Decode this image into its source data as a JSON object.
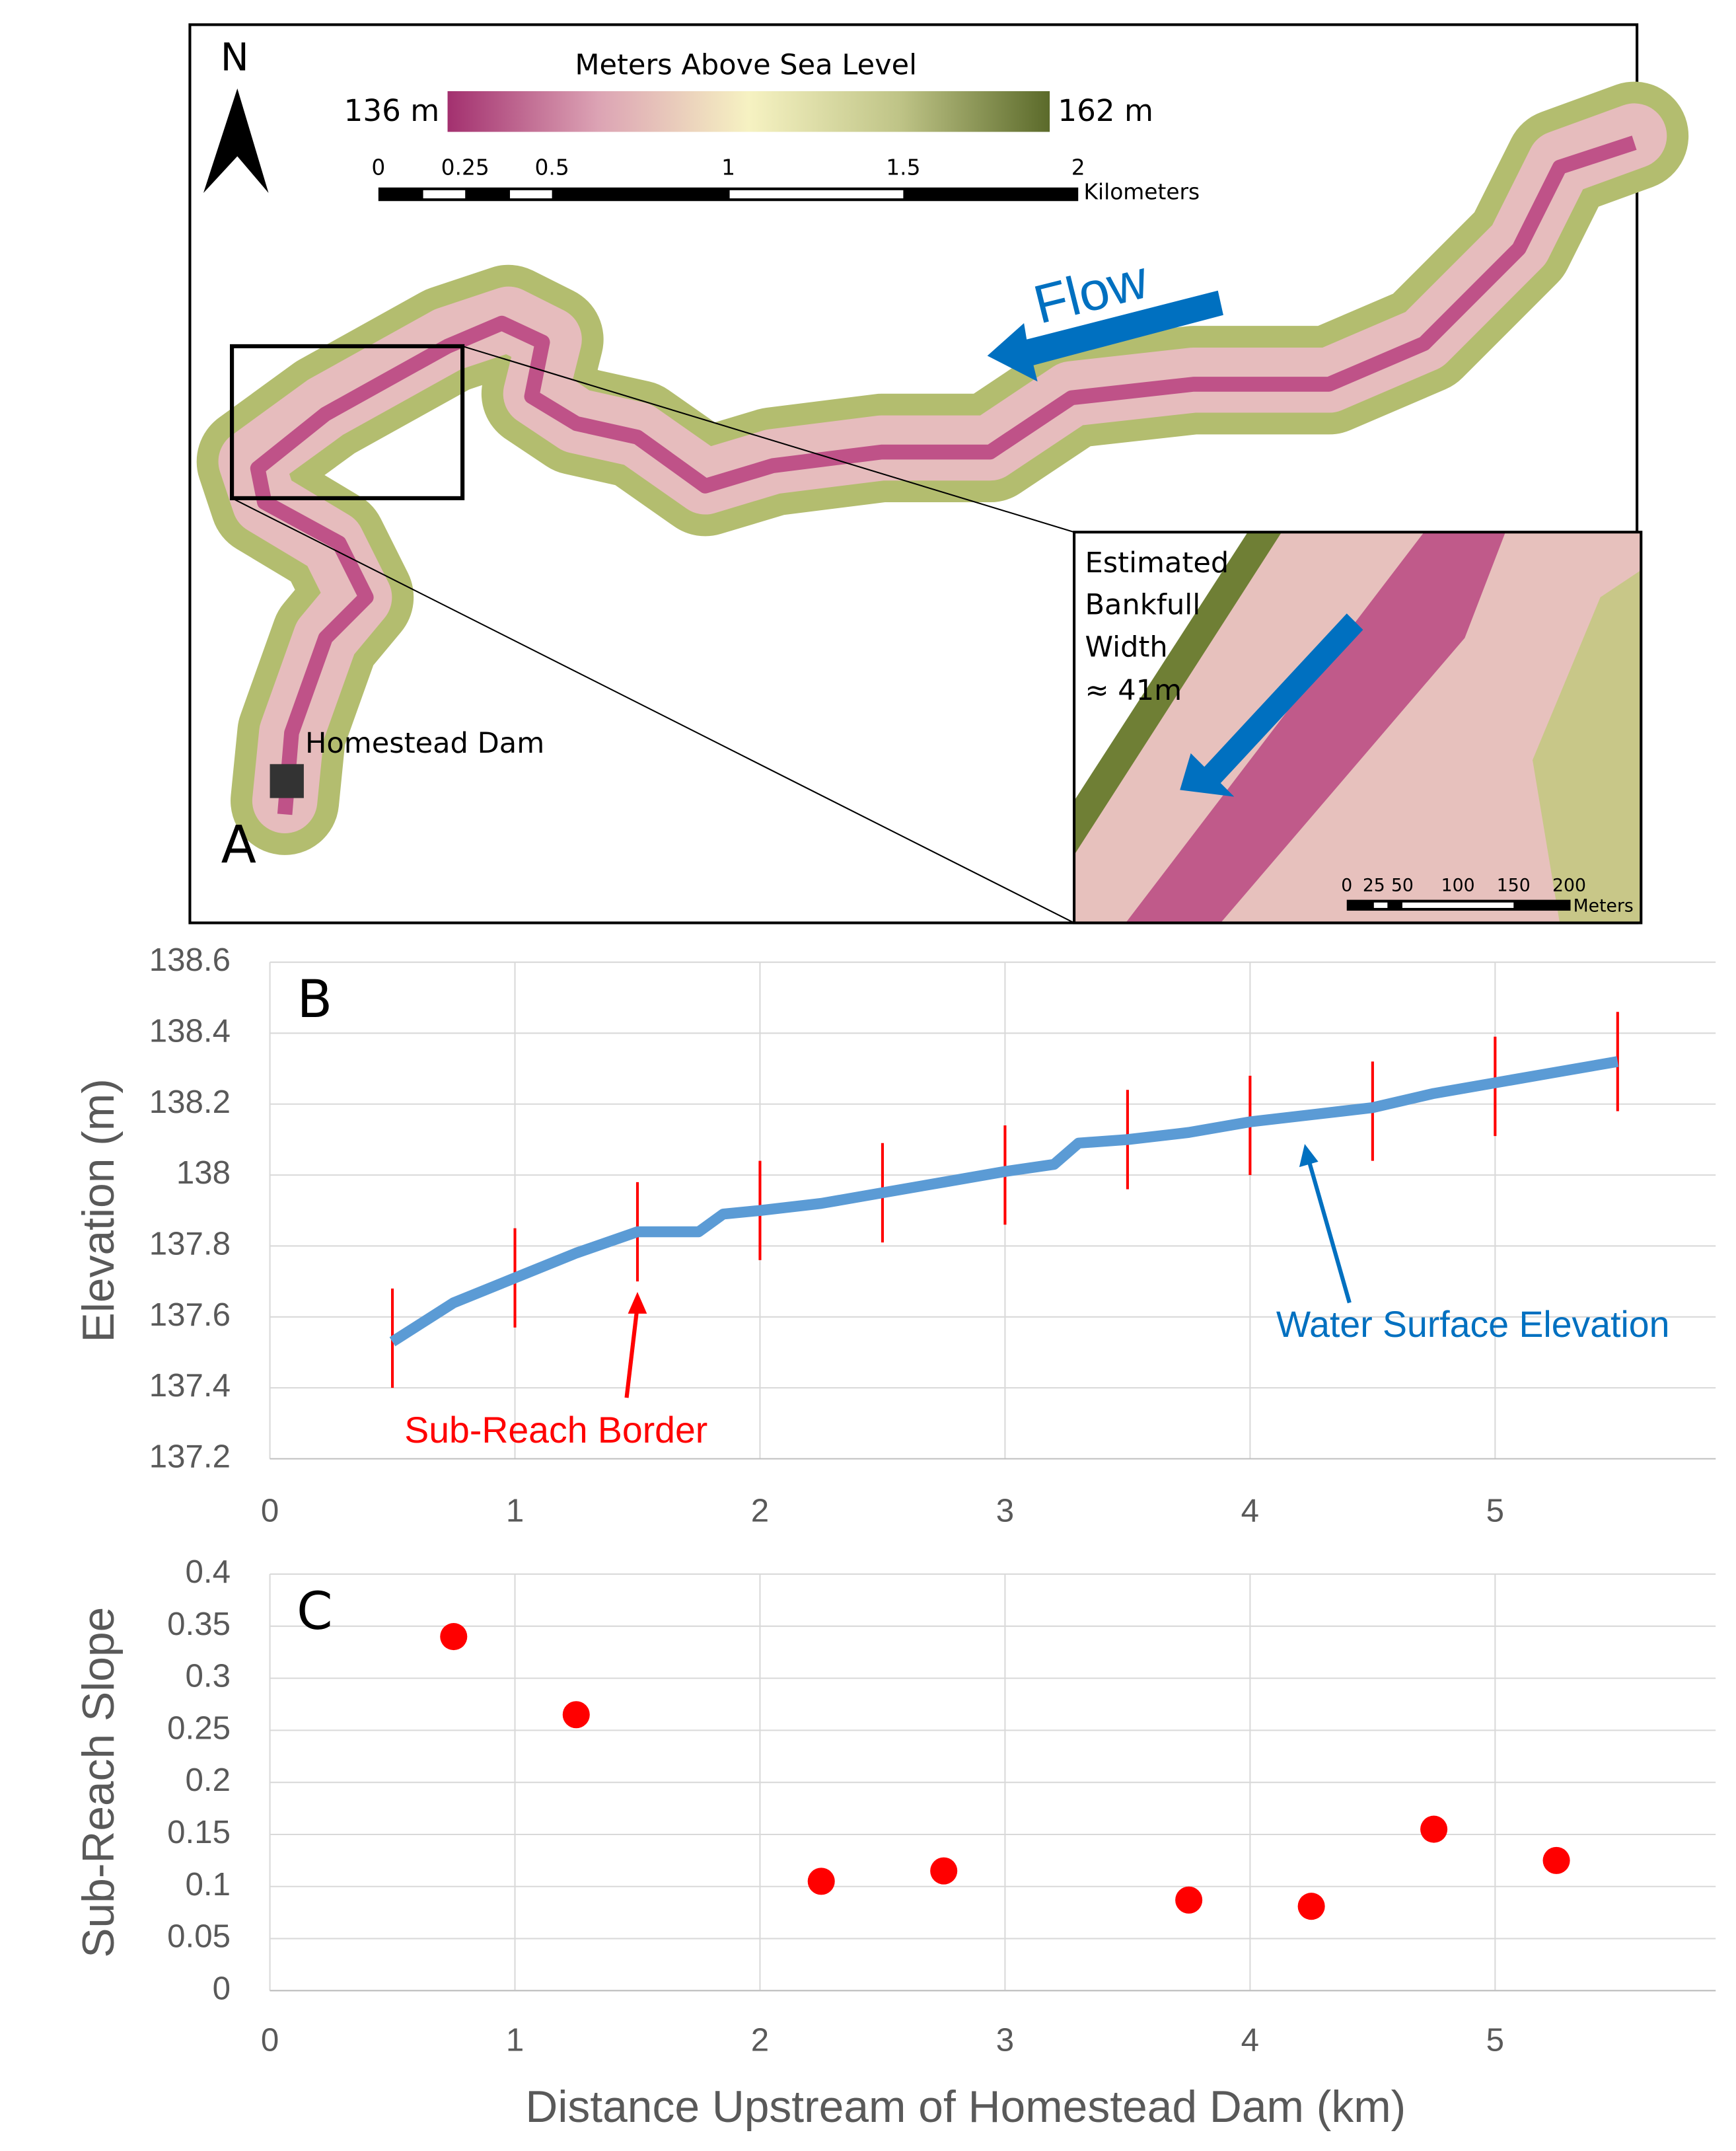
{
  "map": {
    "north": "N",
    "legend_title": "Meters Above Sea Level",
    "legend_min": "136 m",
    "legend_max": "162 m",
    "scale_labels": [
      "0",
      "0.25",
      "0.5",
      "1",
      "1.5",
      "2"
    ],
    "scale_unit": "Kilometers",
    "flow": "Flow",
    "inset_note": [
      "Estimated",
      "Bankfull",
      "Width",
      "≈ 41m"
    ],
    "dam": "Homestead Dam",
    "panel_label": "A",
    "inset_scale_labels": [
      "0",
      "25",
      "50",
      "100",
      "150",
      "200"
    ],
    "inset_scale_unit": "Meters"
  },
  "chart_data": [
    {
      "type": "line",
      "panel_label": "B",
      "ylabel": "Elevation (m)",
      "x": [
        0.5,
        0.75,
        1.0,
        1.25,
        1.5,
        1.75,
        1.85,
        2.0,
        2.25,
        2.5,
        2.75,
        3.0,
        3.2,
        3.3,
        3.5,
        3.75,
        4.0,
        4.25,
        4.5,
        4.75,
        5.0,
        5.25,
        5.5
      ],
      "series": [
        {
          "name": "Water Surface Elevation",
          "color": "#5b9bd5",
          "values": [
            137.53,
            137.64,
            137.71,
            137.78,
            137.84,
            137.84,
            137.89,
            137.9,
            137.92,
            137.95,
            137.98,
            138.01,
            138.03,
            138.09,
            138.1,
            138.12,
            138.15,
            138.17,
            138.19,
            138.23,
            138.26,
            138.29,
            138.32
          ]
        }
      ],
      "sub_reach_borders": {
        "name": "Sub-Reach Border",
        "color": "#ff0000",
        "x": [
          0.5,
          1,
          1.5,
          2,
          2.5,
          3,
          3.5,
          4,
          4.5,
          5,
          5.5
        ],
        "low": [
          137.4,
          137.57,
          137.7,
          137.76,
          137.81,
          137.86,
          137.96,
          138.0,
          138.04,
          138.11,
          138.18
        ],
        "high": [
          137.68,
          137.85,
          137.98,
          138.04,
          138.09,
          138.14,
          138.24,
          138.28,
          138.32,
          138.39,
          138.46
        ]
      },
      "xlim": [
        0,
        5.9
      ],
      "xticks": [
        0,
        1,
        2,
        3,
        4,
        5
      ],
      "ylim": [
        137.2,
        138.6
      ],
      "yticks": [
        137.2,
        137.4,
        137.6,
        137.8,
        138,
        138.2,
        138.4,
        138.6
      ],
      "grid": true
    },
    {
      "type": "scatter",
      "panel_label": "C",
      "ylabel": "Sub-Reach Slope",
      "xlabel": "Distance Upstream of Homestead Dam (km)",
      "color": "#ff0000",
      "x": [
        0.75,
        1.25,
        2.25,
        2.75,
        3.75,
        4.25,
        4.75,
        5.25
      ],
      "values": [
        0.34,
        0.265,
        0.105,
        0.115,
        0.087,
        0.081,
        0.155,
        0.125
      ],
      "xlim": [
        0,
        5.9
      ],
      "xticks": [
        0,
        1,
        2,
        3,
        4,
        5
      ],
      "ylim": [
        0,
        0.4
      ],
      "yticks": [
        0,
        0.05,
        0.1,
        0.15,
        0.2,
        0.25,
        0.3,
        0.35,
        0.4
      ],
      "grid": true
    }
  ]
}
